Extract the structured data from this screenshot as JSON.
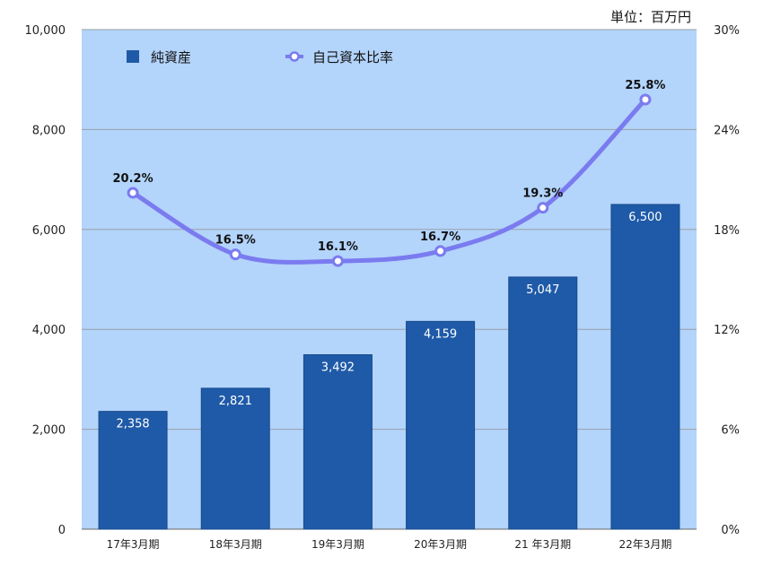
{
  "chart_data": {
    "type": "bar",
    "unit_label": "単位：百万円",
    "categories": [
      "17年3月期",
      "18年3月期",
      "19年3月期",
      "20年3月期",
      "21 年3月期",
      "22年3月期"
    ],
    "series": [
      {
        "name": "純資産",
        "type": "bar",
        "axis": "left",
        "color": "#1f5aa8",
        "values": [
          2358,
          2821,
          3492,
          4159,
          5047,
          6500
        ],
        "labels": [
          "2,358",
          "2,821",
          "3,492",
          "4,159",
          "5,047",
          "6,500"
        ]
      },
      {
        "name": "自己資本比率",
        "type": "line",
        "axis": "right",
        "color": "#7b7bf0",
        "values": [
          20.2,
          16.5,
          16.1,
          16.7,
          19.3,
          25.8
        ],
        "labels": [
          "20.2%",
          "16.5%",
          "16.1%",
          "16.7%",
          "19.3%",
          "25.8%"
        ]
      }
    ],
    "y_left": {
      "min": 0,
      "max": 10000,
      "ticks": [
        0,
        2000,
        4000,
        6000,
        8000,
        10000
      ],
      "tick_labels": [
        "0",
        "2,000",
        "4,000",
        "6,000",
        "8,000",
        "10,000"
      ]
    },
    "y_right": {
      "min": 0,
      "max": 30,
      "ticks": [
        0,
        6,
        12,
        18,
        24,
        30
      ],
      "tick_labels": [
        "0%",
        "6%",
        "12%",
        "18%",
        "24%",
        "30%"
      ]
    },
    "plot_background": "#b3d4fb",
    "grid": true,
    "legend": "top-left"
  }
}
